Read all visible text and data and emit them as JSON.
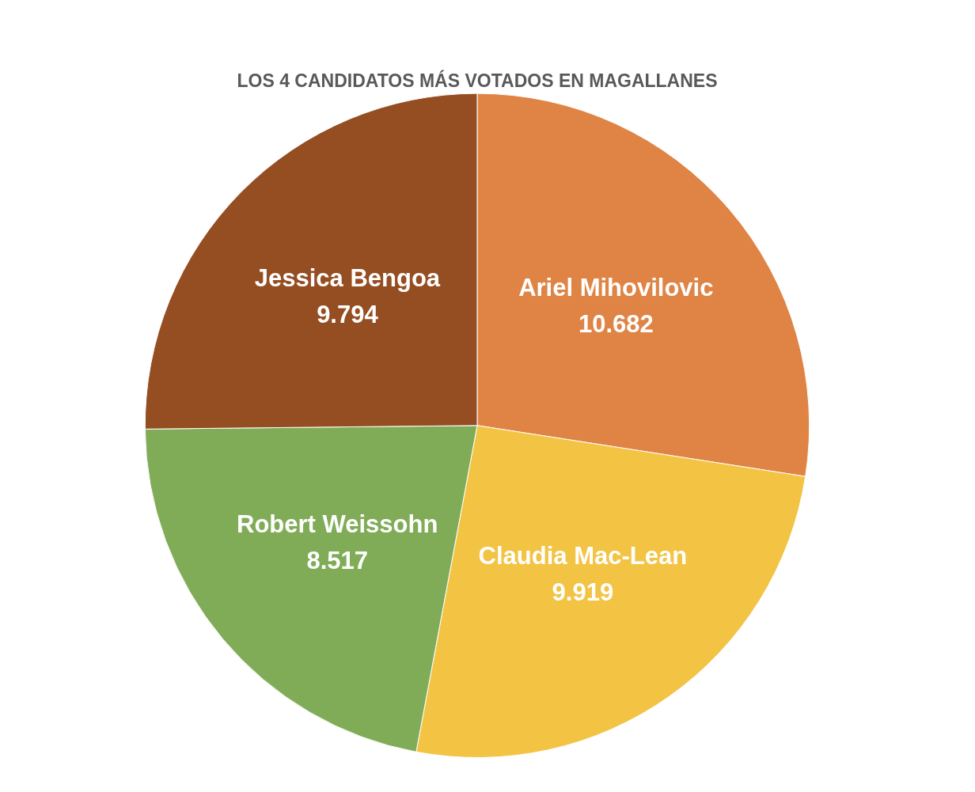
{
  "chart_data": {
    "type": "pie",
    "title": "LOS 4 CANDIDATOS MÁS VOTADOS EN MAGALLANES",
    "categories": [
      "Ariel Mihovilovic",
      "Claudia Mac-Lean",
      "Robert Weissohn",
      "Jessica Bengoa"
    ],
    "values": [
      10682,
      9919,
      8517,
      9794
    ],
    "value_labels": [
      "10.682",
      "9.919",
      "8.517",
      "9.794"
    ],
    "colors": [
      "#df8444",
      "#f3c343",
      "#80ac58",
      "#954d22"
    ],
    "legend": false
  }
}
